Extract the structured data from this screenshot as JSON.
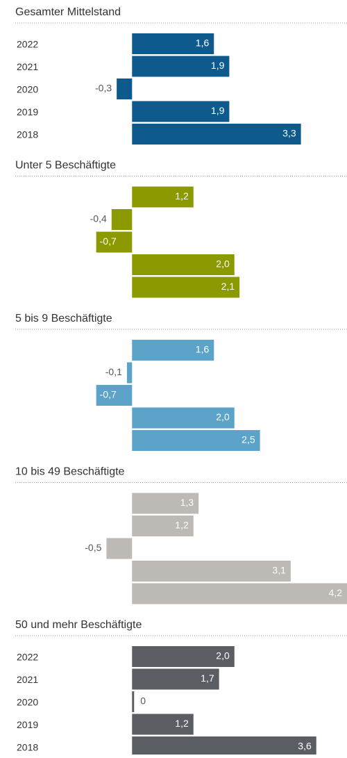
{
  "chart_data": [
    {
      "type": "bar",
      "title": "Gesamter Mittelstand",
      "categories": [
        "2022",
        "2021",
        "2020",
        "2019",
        "2018"
      ],
      "values": [
        1.6,
        1.9,
        -0.3,
        1.9,
        3.3
      ],
      "value_labels": [
        "1,6",
        "1,9",
        "-0,3",
        "1,9",
        "3,3"
      ],
      "color": "#0f5a8c",
      "xlim": [
        -2.58,
        4.2
      ]
    },
    {
      "type": "bar",
      "title": "Unter 5 Beschäftigte",
      "categories": [
        null,
        null,
        null,
        null,
        null
      ],
      "values": [
        1.2,
        -0.4,
        -0.7,
        2.0,
        2.1
      ],
      "value_labels": [
        "1,2",
        "-0,4",
        "-0,7",
        "2,0",
        "2,1"
      ],
      "color": "#8a9a00",
      "xlim": [
        -2.58,
        4.2
      ]
    },
    {
      "type": "bar",
      "title": "5 bis 9 Beschäftigte",
      "categories": [
        null,
        null,
        null,
        null,
        null
      ],
      "values": [
        1.6,
        -0.1,
        -0.7,
        2.0,
        2.5
      ],
      "value_labels": [
        "1,6",
        "-0,1",
        "-0,7",
        "2,0",
        "2,5"
      ],
      "color": "#5ba3c9",
      "xlim": [
        -2.58,
        4.2
      ]
    },
    {
      "type": "bar",
      "title": "10 bis 49 Beschäftigte",
      "categories": [
        null,
        null,
        null,
        null,
        null
      ],
      "values": [
        1.3,
        1.2,
        -0.5,
        3.1,
        4.2
      ],
      "value_labels": [
        "1,3",
        "1,2",
        "-0,5",
        "3,1",
        "4,2"
      ],
      "color": "#bdb9b5",
      "xlim": [
        -2.58,
        4.2
      ]
    },
    {
      "type": "bar",
      "title": "50 und mehr Beschäftigte",
      "categories": [
        "2022",
        "2021",
        "2020",
        "2019",
        "2018"
      ],
      "values": [
        2.0,
        1.7,
        0,
        1.2,
        3.6
      ],
      "value_labels": [
        "2,0",
        "1,7",
        "0",
        "1,2",
        "3,6"
      ],
      "color": "#5a5e63",
      "xlim": [
        -2.58,
        4.2
      ]
    }
  ]
}
